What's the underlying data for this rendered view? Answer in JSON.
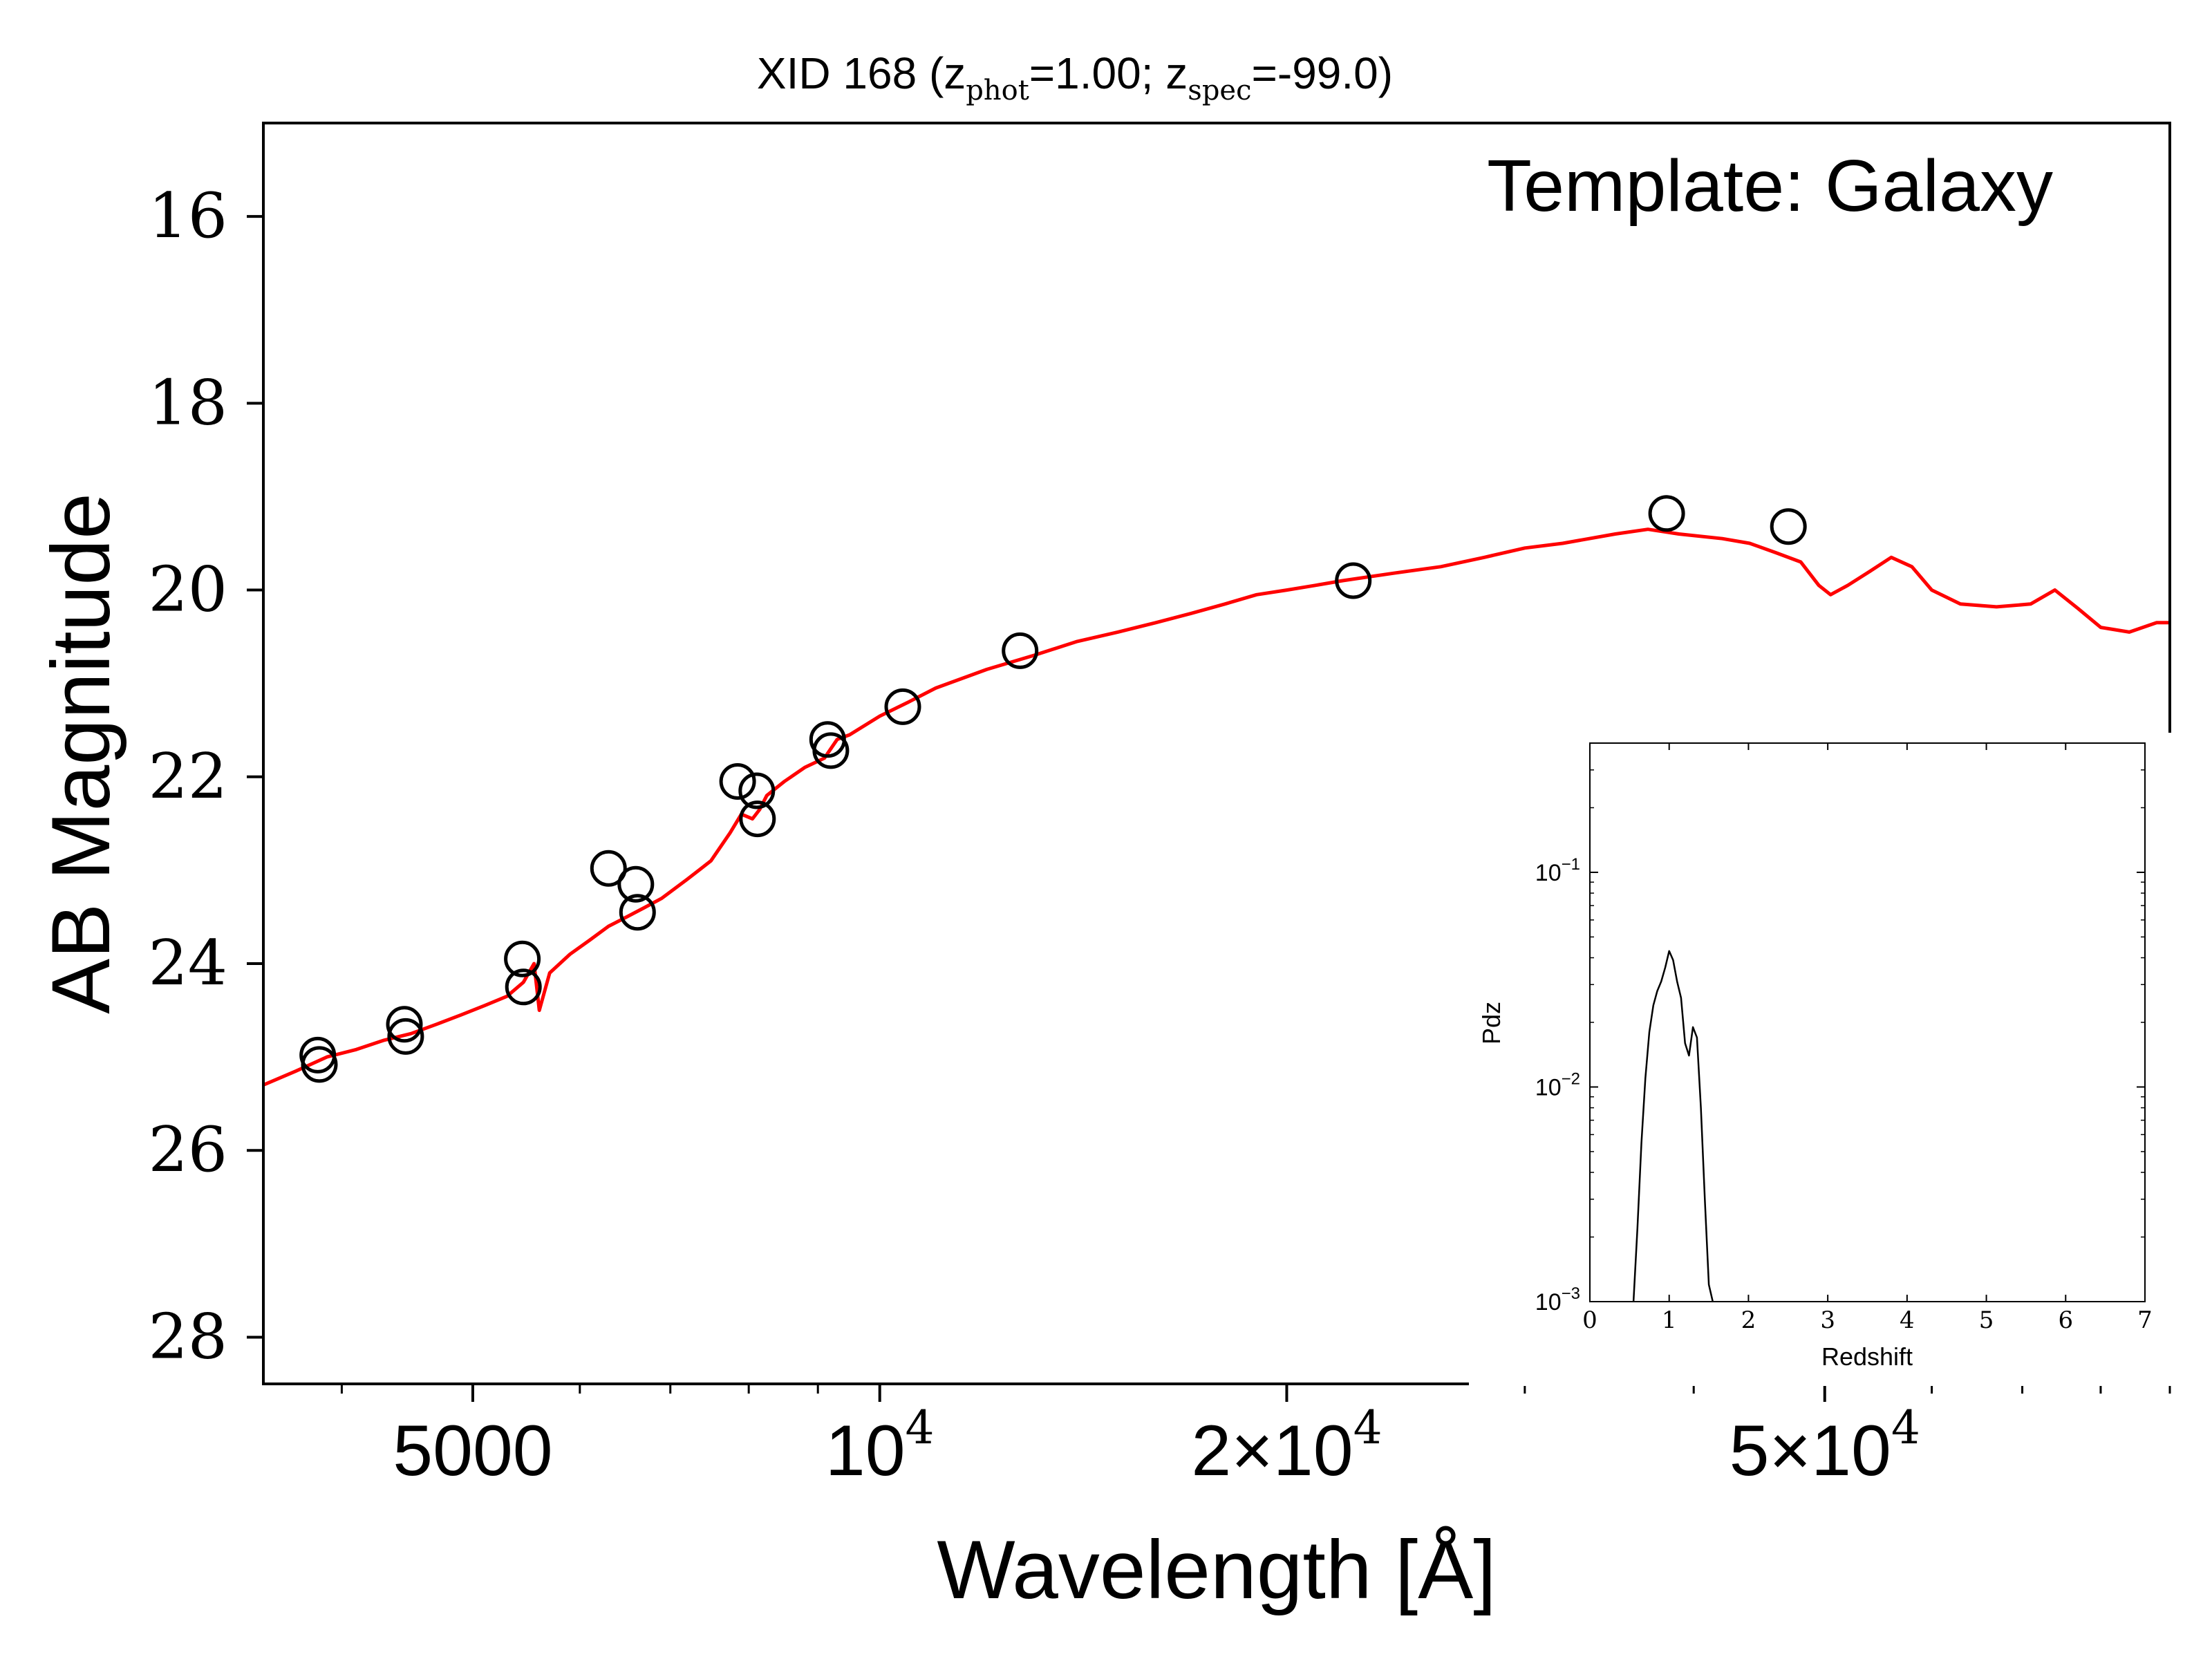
{
  "chart_data": [
    {
      "type": "line",
      "title": {
        "prefix": "XID 168 (z",
        "sub_phot": "phot",
        "mid": "=1.00; z",
        "sub_spec": "spec",
        "suffix": "=-99.0)"
      },
      "annotation": "Template: Galaxy",
      "xlabel": "Wavelength [Å]",
      "ylabel": "AB Magnitude",
      "xscale": "log",
      "xlim": [
        3500,
        90000
      ],
      "ylim": [
        28.5,
        15
      ],
      "y_inverted": true,
      "yticks": [
        "16",
        "18",
        "20",
        "22",
        "24",
        "26",
        "28"
      ],
      "xticks": [
        {
          "value": 5000,
          "label": "5000"
        },
        {
          "value": 10000,
          "label": "10",
          "exp": "4"
        },
        {
          "value": 20000,
          "label": "2×10",
          "exp": "4"
        },
        {
          "value": 50000,
          "label": "5×10",
          "exp": "4"
        }
      ],
      "series": [
        {
          "kind": "template",
          "color": "#ff0000",
          "points": [
            [
              3500,
              25.3
            ],
            [
              3700,
              25.15
            ],
            [
              3900,
              25.0
            ],
            [
              4100,
              24.92
            ],
            [
              4300,
              24.82
            ],
            [
              4500,
              24.75
            ],
            [
              4700,
              24.65
            ],
            [
              4900,
              24.55
            ],
            [
              5100,
              24.45
            ],
            [
              5300,
              24.35
            ],
            [
              5450,
              24.2
            ],
            [
              5550,
              24.0
            ],
            [
              5600,
              24.5
            ],
            [
              5700,
              24.1
            ],
            [
              5900,
              23.9
            ],
            [
              6100,
              23.75
            ],
            [
              6300,
              23.6
            ],
            [
              6500,
              23.5
            ],
            [
              6700,
              23.4
            ],
            [
              6900,
              23.3
            ],
            [
              7200,
              23.1
            ],
            [
              7500,
              22.9
            ],
            [
              7750,
              22.6
            ],
            [
              7900,
              22.4
            ],
            [
              8050,
              22.45
            ],
            [
              8150,
              22.35
            ],
            [
              8250,
              22.2
            ],
            [
              8500,
              22.05
            ],
            [
              8800,
              21.9
            ],
            [
              9100,
              21.8
            ],
            [
              9300,
              21.6
            ],
            [
              9500,
              21.55
            ],
            [
              10000,
              21.35
            ],
            [
              10500,
              21.2
            ],
            [
              11000,
              21.05
            ],
            [
              12000,
              20.85
            ],
            [
              13000,
              20.7
            ],
            [
              14000,
              20.55
            ],
            [
              15000,
              20.45
            ],
            [
              16000,
              20.35
            ],
            [
              17000,
              20.25
            ],
            [
              18000,
              20.15
            ],
            [
              19000,
              20.05
            ],
            [
              20000,
              20.0
            ],
            [
              21000,
              19.95
            ],
            [
              22000,
              19.9
            ],
            [
              24000,
              19.82
            ],
            [
              26000,
              19.75
            ],
            [
              28000,
              19.65
            ],
            [
              30000,
              19.55
            ],
            [
              32000,
              19.5
            ],
            [
              35000,
              19.4
            ],
            [
              37000,
              19.35
            ],
            [
              39000,
              19.4
            ],
            [
              42000,
              19.45
            ],
            [
              44000,
              19.5
            ],
            [
              46000,
              19.6
            ],
            [
              48000,
              19.7
            ],
            [
              49500,
              19.95
            ],
            [
              50500,
              20.05
            ],
            [
              52000,
              19.95
            ],
            [
              54000,
              19.8
            ],
            [
              56000,
              19.65
            ],
            [
              58000,
              19.75
            ],
            [
              60000,
              20.0
            ],
            [
              63000,
              20.15
            ],
            [
              67000,
              20.18
            ],
            [
              71000,
              20.15
            ],
            [
              74000,
              20.0
            ],
            [
              77000,
              20.2
            ],
            [
              80000,
              20.4
            ],
            [
              84000,
              20.45
            ],
            [
              88000,
              20.35
            ],
            [
              90000,
              20.35
            ]
          ]
        },
        {
          "kind": "photometry",
          "color": "#000000",
          "points": [
            [
              3840,
              24.98
            ],
            [
              3850,
              25.08
            ],
            [
              4450,
              24.65
            ],
            [
              4460,
              24.78
            ],
            [
              5440,
              23.95
            ],
            [
              5450,
              24.25
            ],
            [
              6300,
              22.98
            ],
            [
              6600,
              23.15
            ],
            [
              6620,
              23.45
            ],
            [
              7850,
              22.05
            ],
            [
              8110,
              22.15
            ],
            [
              8120,
              22.45
            ],
            [
              9150,
              21.6
            ],
            [
              9200,
              21.72
            ],
            [
              10400,
              21.25
            ],
            [
              12700,
              20.65
            ],
            [
              22400,
              19.9
            ],
            [
              38200,
              19.18
            ],
            [
              47000,
              19.32
            ]
          ]
        }
      ]
    },
    {
      "type": "line",
      "title": "",
      "xlabel": "Redshift",
      "ylabel": "Pdz",
      "yscale": "log",
      "xlim": [
        0,
        7
      ],
      "ylim": [
        0.001,
        0.4
      ],
      "xticks": [
        "0",
        "1",
        "2",
        "3",
        "4",
        "5",
        "6",
        "7"
      ],
      "yticks": [
        {
          "value": 0.1,
          "base": "10",
          "exp": "−1"
        },
        {
          "value": 0.01,
          "base": "10",
          "exp": "−2"
        },
        {
          "value": 0.001,
          "base": "10",
          "exp": "−3"
        }
      ],
      "series": [
        {
          "kind": "pdz",
          "color": "#000000",
          "points": [
            [
              0.55,
              0.001
            ],
            [
              0.6,
              0.0022
            ],
            [
              0.65,
              0.0055
            ],
            [
              0.7,
              0.011
            ],
            [
              0.75,
              0.018
            ],
            [
              0.8,
              0.024
            ],
            [
              0.85,
              0.028
            ],
            [
              0.9,
              0.031
            ],
            [
              0.95,
              0.036
            ],
            [
              1.0,
              0.043
            ],
            [
              1.05,
              0.039
            ],
            [
              1.1,
              0.031
            ],
            [
              1.15,
              0.026
            ],
            [
              1.2,
              0.016
            ],
            [
              1.25,
              0.014
            ],
            [
              1.3,
              0.019
            ],
            [
              1.35,
              0.017
            ],
            [
              1.4,
              0.008
            ],
            [
              1.45,
              0.003
            ],
            [
              1.5,
              0.0012
            ],
            [
              1.55,
              0.001
            ]
          ]
        }
      ]
    }
  ]
}
